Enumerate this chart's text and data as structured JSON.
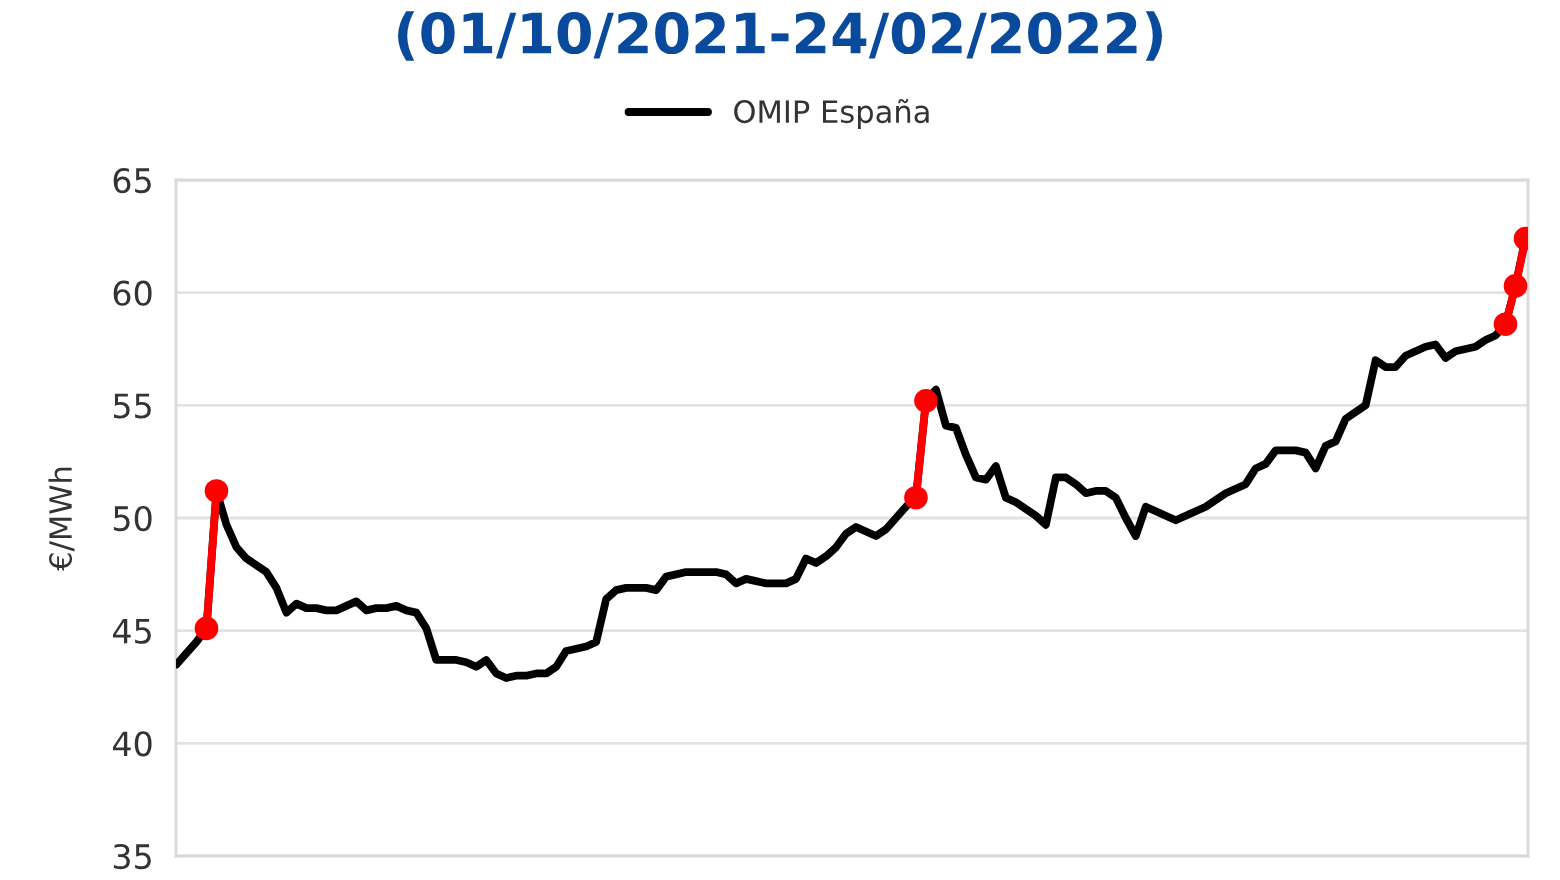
{
  "chart_data": {
    "type": "line",
    "title": "(01/10/2021-24/02/2022)",
    "ylabel": "€/MWh",
    "categories": [
      null,
      null,
      null,
      null,
      null,
      null,
      null,
      null,
      null,
      null,
      null,
      null,
      null,
      null,
      null,
      null,
      null,
      null,
      null,
      null,
      null,
      null,
      null,
      null,
      null,
      null,
      null,
      null,
      null,
      null,
      null,
      null,
      null,
      null,
      null,
      null,
      null,
      null,
      null,
      null,
      null,
      null,
      null,
      null,
      null,
      null,
      null,
      null,
      null,
      null,
      null,
      null,
      null,
      null,
      null,
      null,
      null,
      null,
      null,
      null,
      null,
      null,
      null,
      null,
      null,
      null,
      null,
      null,
      null,
      null,
      null,
      null,
      null,
      null,
      null,
      null,
      null,
      null,
      null,
      null,
      null,
      null,
      null,
      null,
      null,
      null,
      null,
      null,
      null,
      null,
      null,
      null,
      null,
      null,
      null,
      null,
      null,
      null,
      null,
      null,
      null,
      null,
      null,
      null,
      null,
      null,
      null,
      null,
      null,
      null,
      null,
      null,
      null,
      null,
      null,
      null,
      null,
      null,
      null,
      null,
      null,
      null,
      null,
      null,
      null,
      null,
      null,
      null,
      null,
      null,
      null,
      null,
      null,
      null,
      null,
      null
    ],
    "series": [
      {
        "name": "OMIP España",
        "color": "#000000",
        "values": [
          43.5,
          44.0,
          44.5,
          45.1,
          51.2,
          49.7,
          48.7,
          48.2,
          47.9,
          47.6,
          46.9,
          45.8,
          46.2,
          46.0,
          46.0,
          45.9,
          45.9,
          46.1,
          46.3,
          45.9,
          46.0,
          46.0,
          46.1,
          45.9,
          45.8,
          45.1,
          43.7,
          43.7,
          43.7,
          43.6,
          43.4,
          43.7,
          43.1,
          42.9,
          43.0,
          43.0,
          43.1,
          43.1,
          43.4,
          44.1,
          44.2,
          44.3,
          44.5,
          46.4,
          46.8,
          46.9,
          46.9,
          46.9,
          46.8,
          47.4,
          47.5,
          47.6,
          47.6,
          47.6,
          47.6,
          47.5,
          47.1,
          47.3,
          47.2,
          47.1,
          47.1,
          47.1,
          47.3,
          48.2,
          48.0,
          48.3,
          48.7,
          49.3,
          49.6,
          49.4,
          49.2,
          49.5,
          50.0,
          50.5,
          50.9,
          55.2,
          55.7,
          54.1,
          54.0,
          52.8,
          51.8,
          51.7,
          52.3,
          50.9,
          50.7,
          50.4,
          50.1,
          49.7,
          51.8,
          51.8,
          51.5,
          51.1,
          51.2,
          51.2,
          50.9,
          50.0,
          49.2,
          50.5,
          50.3,
          50.1,
          49.9,
          50.1,
          50.3,
          50.5,
          50.8,
          51.1,
          51.3,
          51.5,
          52.2,
          52.4,
          53.0,
          53.0,
          53.0,
          52.9,
          52.2,
          53.2,
          53.4,
          54.4,
          54.7,
          55.0,
          57.0,
          56.7,
          56.7,
          57.2,
          57.4,
          57.6,
          57.7,
          57.1,
          57.4,
          57.5,
          57.6,
          57.9,
          58.1,
          58.6,
          60.3,
          62.4
        ]
      },
      {
        "color": "#ff0000",
        "marker": "circle",
        "values": [
          null,
          null,
          null,
          45.1,
          51.2,
          null,
          null,
          null,
          null,
          null,
          null,
          null,
          null,
          null,
          null,
          null,
          null,
          null,
          null,
          null,
          null,
          null,
          null,
          null,
          null,
          null,
          null,
          null,
          null,
          null,
          null,
          null,
          null,
          null,
          null,
          null,
          null,
          null,
          null,
          null,
          null,
          null,
          null,
          null,
          null,
          null,
          null,
          null,
          null,
          null,
          null,
          null,
          null,
          null,
          null,
          null,
          null,
          null,
          null,
          null,
          null,
          null,
          null,
          null,
          null,
          null,
          null,
          null,
          null,
          null,
          null,
          null,
          null,
          null,
          50.9,
          55.2,
          null,
          null,
          null,
          null,
          null,
          null,
          null,
          null,
          null,
          null,
          null,
          null,
          null,
          null,
          null,
          null,
          null,
          null,
          null,
          null,
          null,
          null,
          null,
          null,
          null,
          null,
          null,
          null,
          null,
          null,
          null,
          null,
          null,
          null,
          null,
          null,
          null,
          null,
          null,
          null,
          null,
          null,
          null,
          null,
          null,
          null,
          null,
          null,
          null,
          null,
          null,
          null,
          null,
          null,
          null,
          null,
          null,
          58.6,
          60.3,
          62.4
        ]
      }
    ],
    "ylim": [
      35,
      65
    ],
    "yticks": [
      35,
      40,
      45,
      50,
      55,
      60,
      65
    ],
    "grid": "y",
    "legend": "top"
  }
}
